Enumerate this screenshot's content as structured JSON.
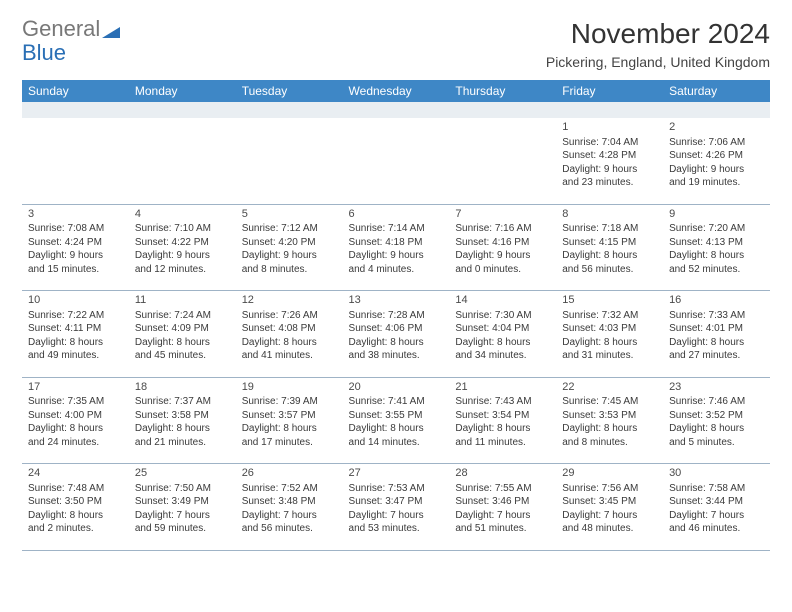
{
  "logo": {
    "text1": "General",
    "text2": "Blue"
  },
  "title": "November 2024",
  "subtitle": "Pickering, England, United Kingdom",
  "colors": {
    "header_bg": "#3e87c6",
    "header_text": "#ffffff",
    "spacer_bg": "#e9eef2",
    "rule": "#9fb3c6",
    "logo_gray": "#787878",
    "logo_blue": "#2a6fb5"
  },
  "weekdays": [
    "Sunday",
    "Monday",
    "Tuesday",
    "Wednesday",
    "Thursday",
    "Friday",
    "Saturday"
  ],
  "weeks": [
    [
      null,
      null,
      null,
      null,
      null,
      {
        "n": "1",
        "sr": "Sunrise: 7:04 AM",
        "ss": "Sunset: 4:28 PM",
        "d1": "Daylight: 9 hours",
        "d2": "and 23 minutes."
      },
      {
        "n": "2",
        "sr": "Sunrise: 7:06 AM",
        "ss": "Sunset: 4:26 PM",
        "d1": "Daylight: 9 hours",
        "d2": "and 19 minutes."
      }
    ],
    [
      {
        "n": "3",
        "sr": "Sunrise: 7:08 AM",
        "ss": "Sunset: 4:24 PM",
        "d1": "Daylight: 9 hours",
        "d2": "and 15 minutes."
      },
      {
        "n": "4",
        "sr": "Sunrise: 7:10 AM",
        "ss": "Sunset: 4:22 PM",
        "d1": "Daylight: 9 hours",
        "d2": "and 12 minutes."
      },
      {
        "n": "5",
        "sr": "Sunrise: 7:12 AM",
        "ss": "Sunset: 4:20 PM",
        "d1": "Daylight: 9 hours",
        "d2": "and 8 minutes."
      },
      {
        "n": "6",
        "sr": "Sunrise: 7:14 AM",
        "ss": "Sunset: 4:18 PM",
        "d1": "Daylight: 9 hours",
        "d2": "and 4 minutes."
      },
      {
        "n": "7",
        "sr": "Sunrise: 7:16 AM",
        "ss": "Sunset: 4:16 PM",
        "d1": "Daylight: 9 hours",
        "d2": "and 0 minutes."
      },
      {
        "n": "8",
        "sr": "Sunrise: 7:18 AM",
        "ss": "Sunset: 4:15 PM",
        "d1": "Daylight: 8 hours",
        "d2": "and 56 minutes."
      },
      {
        "n": "9",
        "sr": "Sunrise: 7:20 AM",
        "ss": "Sunset: 4:13 PM",
        "d1": "Daylight: 8 hours",
        "d2": "and 52 minutes."
      }
    ],
    [
      {
        "n": "10",
        "sr": "Sunrise: 7:22 AM",
        "ss": "Sunset: 4:11 PM",
        "d1": "Daylight: 8 hours",
        "d2": "and 49 minutes."
      },
      {
        "n": "11",
        "sr": "Sunrise: 7:24 AM",
        "ss": "Sunset: 4:09 PM",
        "d1": "Daylight: 8 hours",
        "d2": "and 45 minutes."
      },
      {
        "n": "12",
        "sr": "Sunrise: 7:26 AM",
        "ss": "Sunset: 4:08 PM",
        "d1": "Daylight: 8 hours",
        "d2": "and 41 minutes."
      },
      {
        "n": "13",
        "sr": "Sunrise: 7:28 AM",
        "ss": "Sunset: 4:06 PM",
        "d1": "Daylight: 8 hours",
        "d2": "and 38 minutes."
      },
      {
        "n": "14",
        "sr": "Sunrise: 7:30 AM",
        "ss": "Sunset: 4:04 PM",
        "d1": "Daylight: 8 hours",
        "d2": "and 34 minutes."
      },
      {
        "n": "15",
        "sr": "Sunrise: 7:32 AM",
        "ss": "Sunset: 4:03 PM",
        "d1": "Daylight: 8 hours",
        "d2": "and 31 minutes."
      },
      {
        "n": "16",
        "sr": "Sunrise: 7:33 AM",
        "ss": "Sunset: 4:01 PM",
        "d1": "Daylight: 8 hours",
        "d2": "and 27 minutes."
      }
    ],
    [
      {
        "n": "17",
        "sr": "Sunrise: 7:35 AM",
        "ss": "Sunset: 4:00 PM",
        "d1": "Daylight: 8 hours",
        "d2": "and 24 minutes."
      },
      {
        "n": "18",
        "sr": "Sunrise: 7:37 AM",
        "ss": "Sunset: 3:58 PM",
        "d1": "Daylight: 8 hours",
        "d2": "and 21 minutes."
      },
      {
        "n": "19",
        "sr": "Sunrise: 7:39 AM",
        "ss": "Sunset: 3:57 PM",
        "d1": "Daylight: 8 hours",
        "d2": "and 17 minutes."
      },
      {
        "n": "20",
        "sr": "Sunrise: 7:41 AM",
        "ss": "Sunset: 3:55 PM",
        "d1": "Daylight: 8 hours",
        "d2": "and 14 minutes."
      },
      {
        "n": "21",
        "sr": "Sunrise: 7:43 AM",
        "ss": "Sunset: 3:54 PM",
        "d1": "Daylight: 8 hours",
        "d2": "and 11 minutes."
      },
      {
        "n": "22",
        "sr": "Sunrise: 7:45 AM",
        "ss": "Sunset: 3:53 PM",
        "d1": "Daylight: 8 hours",
        "d2": "and 8 minutes."
      },
      {
        "n": "23",
        "sr": "Sunrise: 7:46 AM",
        "ss": "Sunset: 3:52 PM",
        "d1": "Daylight: 8 hours",
        "d2": "and 5 minutes."
      }
    ],
    [
      {
        "n": "24",
        "sr": "Sunrise: 7:48 AM",
        "ss": "Sunset: 3:50 PM",
        "d1": "Daylight: 8 hours",
        "d2": "and 2 minutes."
      },
      {
        "n": "25",
        "sr": "Sunrise: 7:50 AM",
        "ss": "Sunset: 3:49 PM",
        "d1": "Daylight: 7 hours",
        "d2": "and 59 minutes."
      },
      {
        "n": "26",
        "sr": "Sunrise: 7:52 AM",
        "ss": "Sunset: 3:48 PM",
        "d1": "Daylight: 7 hours",
        "d2": "and 56 minutes."
      },
      {
        "n": "27",
        "sr": "Sunrise: 7:53 AM",
        "ss": "Sunset: 3:47 PM",
        "d1": "Daylight: 7 hours",
        "d2": "and 53 minutes."
      },
      {
        "n": "28",
        "sr": "Sunrise: 7:55 AM",
        "ss": "Sunset: 3:46 PM",
        "d1": "Daylight: 7 hours",
        "d2": "and 51 minutes."
      },
      {
        "n": "29",
        "sr": "Sunrise: 7:56 AM",
        "ss": "Sunset: 3:45 PM",
        "d1": "Daylight: 7 hours",
        "d2": "and 48 minutes."
      },
      {
        "n": "30",
        "sr": "Sunrise: 7:58 AM",
        "ss": "Sunset: 3:44 PM",
        "d1": "Daylight: 7 hours",
        "d2": "and 46 minutes."
      }
    ]
  ]
}
